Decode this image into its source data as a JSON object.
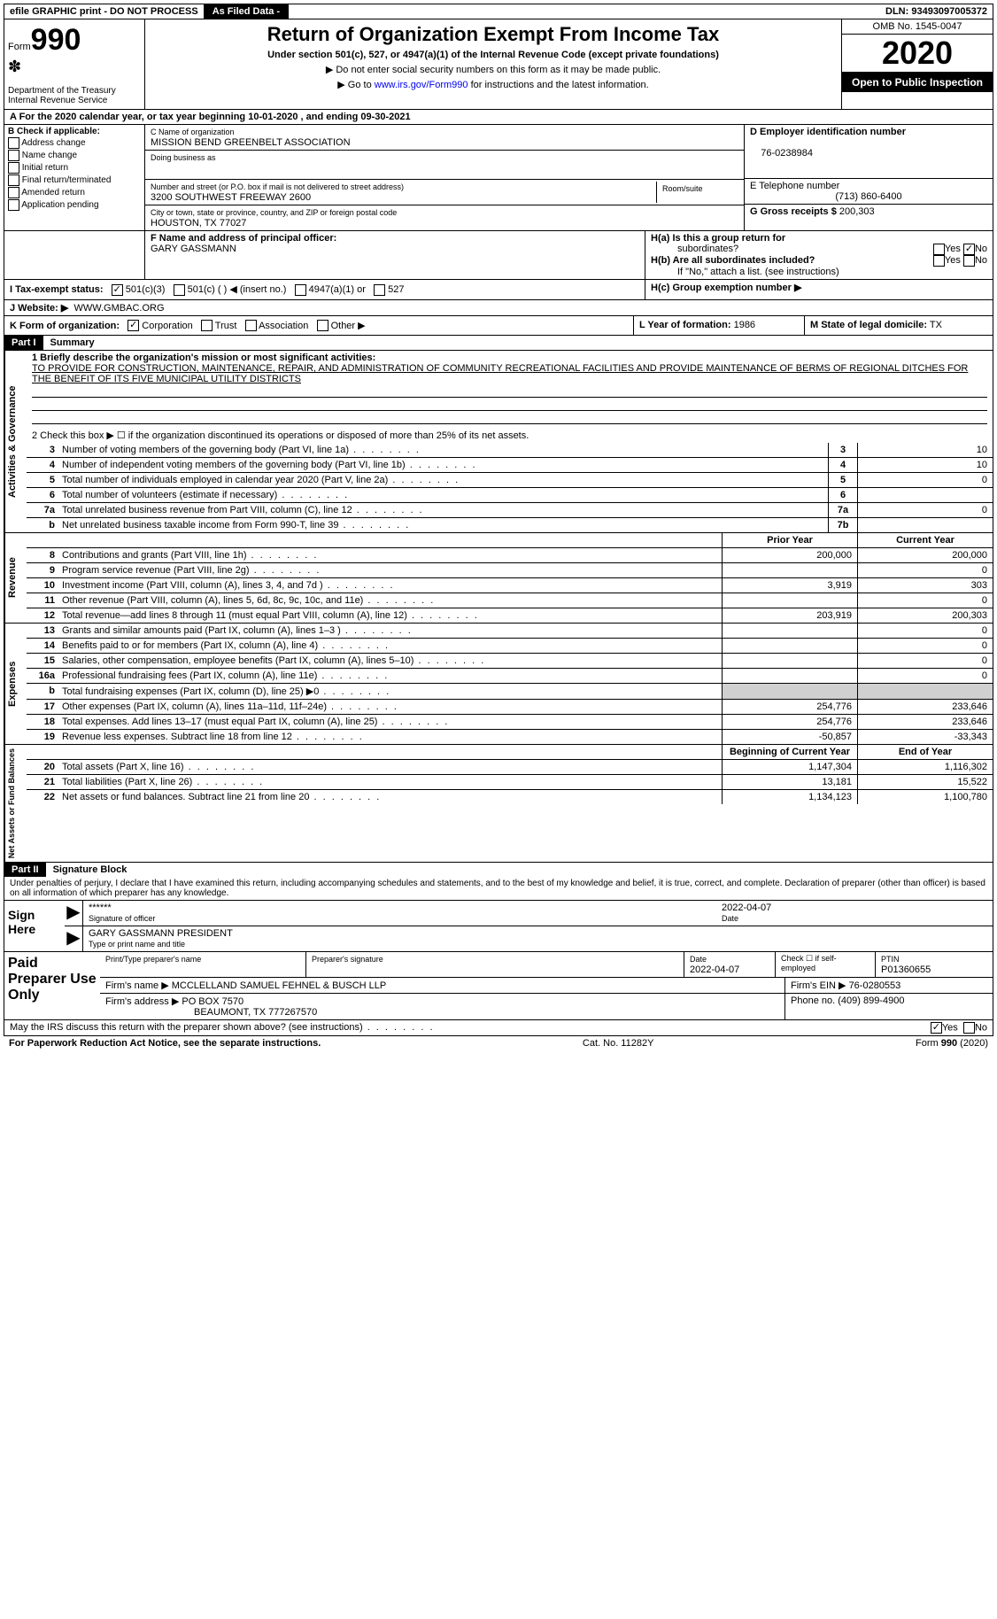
{
  "topbar": {
    "efile": "efile GRAPHIC print - DO NOT PROCESS",
    "asfiled": "As Filed Data -",
    "dln_label": "DLN:",
    "dln": "93493097005372"
  },
  "header": {
    "form_label": "Form",
    "form_num": "990",
    "dept": "Department of the Treasury",
    "irs": "Internal Revenue Service",
    "title": "Return of Organization Exempt From Income Tax",
    "subtitle": "Under section 501(c), 527, or 4947(a)(1) of the Internal Revenue Code (except private foundations)",
    "instr1": "▶ Do not enter social security numbers on this form as it may be made public.",
    "instr2_pre": "▶ Go to ",
    "instr2_link": "www.irs.gov/Form990",
    "instr2_post": " for instructions and the latest information.",
    "omb": "OMB No. 1545-0047",
    "year": "2020",
    "open": "Open to Public Inspection"
  },
  "secA": {
    "text_pre": "A   For the 2020 calendar year, or tax year beginning ",
    "begin": "10-01-2020",
    "mid": "  , and ending ",
    "end": "09-30-2021"
  },
  "colB": {
    "title": "B Check if applicable:",
    "items": [
      "Address change",
      "Name change",
      "Initial return",
      "Final return/terminated",
      "Amended return",
      "Application pending"
    ]
  },
  "colC": {
    "name_label": "C Name of organization",
    "name": "MISSION BEND GREENBELT ASSOCIATION",
    "dba_label": "Doing business as",
    "dba": "",
    "addr_label": "Number and street (or P.O. box if mail is not delivered to street address)",
    "room_label": "Room/suite",
    "addr": "3200 SOUTHWEST FREEWAY 2600",
    "city_label": "City or town, state or province, country, and ZIP or foreign postal code",
    "city": "HOUSTON, TX  77027",
    "officer_label": "F  Name and address of principal officer:",
    "officer": "GARY GASSMANN"
  },
  "colD": {
    "ein_label": "D Employer identification number",
    "ein": "76-0238984",
    "tel_label": "E Telephone number",
    "tel": "(713) 860-6400",
    "gross_label": "G Gross receipts $",
    "gross": "200,303"
  },
  "secH": {
    "ha": "H(a)  Is this a group return for",
    "ha2": "subordinates?",
    "hb": "H(b)  Are all subordinates included?",
    "hb2": "If \"No,\" attach a list. (see instructions)",
    "hc": "H(c)  Group exemption number ▶",
    "yes": "Yes",
    "no": "No"
  },
  "secI": {
    "label": "I   Tax-exempt status:",
    "opts": [
      "501(c)(3)",
      "501(c) (   ) ◀ (insert no.)",
      "4947(a)(1) or",
      "527"
    ]
  },
  "secJ": {
    "label": "J   Website: ▶",
    "val": "WWW.GMBAC.ORG"
  },
  "secK": {
    "label": "K Form of organization:",
    "opts": [
      "Corporation",
      "Trust",
      "Association",
      "Other ▶"
    ]
  },
  "secL": {
    "label": "L Year of formation:",
    "val": "1986"
  },
  "secM": {
    "label": "M State of legal domicile:",
    "val": "TX"
  },
  "part1": {
    "label": "Part I",
    "title": "Summary",
    "sections": {
      "gov": {
        "label": "Activities & Governance",
        "line1_label": "1 Briefly describe the organization's mission or most significant activities:",
        "line1_text": "TO PROVIDE FOR CONSTRUCTION, MAINTENANCE, REPAIR, AND ADMINISTRATION OF COMMUNITY RECREATIONAL FACILITIES AND PROVIDE MAINTENANCE OF BERMS OF REGIONAL DITCHES FOR THE BENEFIT OF ITS FIVE MUNICIPAL UTILITY DISTRICTS",
        "line2": "2  Check this box ▶ ☐ if the organization discontinued its operations or disposed of more than 25% of its net assets.",
        "rows": [
          {
            "n": "3",
            "t": "Number of voting members of the governing body (Part VI, line 1a)",
            "box": "3",
            "v": "10"
          },
          {
            "n": "4",
            "t": "Number of independent voting members of the governing body (Part VI, line 1b)",
            "box": "4",
            "v": "10"
          },
          {
            "n": "5",
            "t": "Total number of individuals employed in calendar year 2020 (Part V, line 2a)",
            "box": "5",
            "v": "0"
          },
          {
            "n": "6",
            "t": "Total number of volunteers (estimate if necessary)",
            "box": "6",
            "v": ""
          },
          {
            "n": "7a",
            "t": "Total unrelated business revenue from Part VIII, column (C), line 12",
            "box": "7a",
            "v": "0"
          },
          {
            "n": "b",
            "t": "Net unrelated business taxable income from Form 990-T, line 39",
            "box": "7b",
            "v": ""
          }
        ]
      },
      "cols": {
        "prior": "Prior Year",
        "current": "Current Year",
        "begin": "Beginning of Current Year",
        "end": "End of Year"
      },
      "rev": {
        "label": "Revenue",
        "rows": [
          {
            "n": "8",
            "t": "Contributions and grants (Part VIII, line 1h)",
            "p": "200,000",
            "c": "200,000"
          },
          {
            "n": "9",
            "t": "Program service revenue (Part VIII, line 2g)",
            "p": "",
            "c": "0"
          },
          {
            "n": "10",
            "t": "Investment income (Part VIII, column (A), lines 3, 4, and 7d )",
            "p": "3,919",
            "c": "303"
          },
          {
            "n": "11",
            "t": "Other revenue (Part VIII, column (A), lines 5, 6d, 8c, 9c, 10c, and 11e)",
            "p": "",
            "c": "0"
          },
          {
            "n": "12",
            "t": "Total revenue—add lines 8 through 11 (must equal Part VIII, column (A), line 12)",
            "p": "203,919",
            "c": "200,303"
          }
        ]
      },
      "exp": {
        "label": "Expenses",
        "rows": [
          {
            "n": "13",
            "t": "Grants and similar amounts paid (Part IX, column (A), lines 1–3 )",
            "p": "",
            "c": "0"
          },
          {
            "n": "14",
            "t": "Benefits paid to or for members (Part IX, column (A), line 4)",
            "p": "",
            "c": "0"
          },
          {
            "n": "15",
            "t": "Salaries, other compensation, employee benefits (Part IX, column (A), lines 5–10)",
            "p": "",
            "c": "0"
          },
          {
            "n": "16a",
            "t": "Professional fundraising fees (Part IX, column (A), line 11e)",
            "p": "",
            "c": "0"
          },
          {
            "n": "b",
            "t": "Total fundraising expenses (Part IX, column (D), line 25) ▶0",
            "p": "shaded",
            "c": "shaded"
          },
          {
            "n": "17",
            "t": "Other expenses (Part IX, column (A), lines 11a–11d, 11f–24e)",
            "p": "254,776",
            "c": "233,646"
          },
          {
            "n": "18",
            "t": "Total expenses. Add lines 13–17 (must equal Part IX, column (A), line 25)",
            "p": "254,776",
            "c": "233,646"
          },
          {
            "n": "19",
            "t": "Revenue less expenses. Subtract line 18 from line 12",
            "p": "-50,857",
            "c": "-33,343"
          }
        ]
      },
      "net": {
        "label": "Net Assets or Fund Balances",
        "rows": [
          {
            "n": "20",
            "t": "Total assets (Part X, line 16)",
            "p": "1,147,304",
            "c": "1,116,302"
          },
          {
            "n": "21",
            "t": "Total liabilities (Part X, line 26)",
            "p": "13,181",
            "c": "15,522"
          },
          {
            "n": "22",
            "t": "Net assets or fund balances. Subtract line 21 from line 20",
            "p": "1,134,123",
            "c": "1,100,780"
          }
        ]
      }
    }
  },
  "part2": {
    "label": "Part II",
    "title": "Signature Block",
    "decl": "Under penalties of perjury, I declare that I have examined this return, including accompanying schedules and statements, and to the best of my knowledge and belief, it is true, correct, and complete. Declaration of preparer (other than officer) is based on all information of which preparer has any knowledge."
  },
  "sign": {
    "here": "Sign Here",
    "stars": "******",
    "sig_label": "Signature of officer",
    "date": "2022-04-07",
    "date_label": "Date",
    "name": "GARY GASSMANN PRESIDENT",
    "name_label": "Type or print name and title"
  },
  "prep": {
    "title": "Paid Preparer Use Only",
    "h1": "Print/Type preparer's name",
    "h2": "Preparer's signature",
    "h3_label": "Date",
    "h3": "2022-04-07",
    "h4": "Check ☐ if self-employed",
    "h5_label": "PTIN",
    "h5": "P01360655",
    "firm_label": "Firm's name    ▶",
    "firm": "MCCLELLAND SAMUEL FEHNEL & BUSCH LLP",
    "ein_label": "Firm's EIN ▶",
    "ein": "76-0280553",
    "addr_label": "Firm's address ▶",
    "addr1": "PO BOX 7570",
    "addr2": "BEAUMONT, TX  777267570",
    "phone_label": "Phone no.",
    "phone": "(409) 899-4900"
  },
  "footer": {
    "q": "May the IRS discuss this return with the preparer shown above? (see instructions)",
    "yes": "Yes",
    "no": "No",
    "paperwork": "For Paperwork Reduction Act Notice, see the separate instructions.",
    "cat": "Cat. No. 11282Y",
    "form": "Form 990 (2020)"
  }
}
